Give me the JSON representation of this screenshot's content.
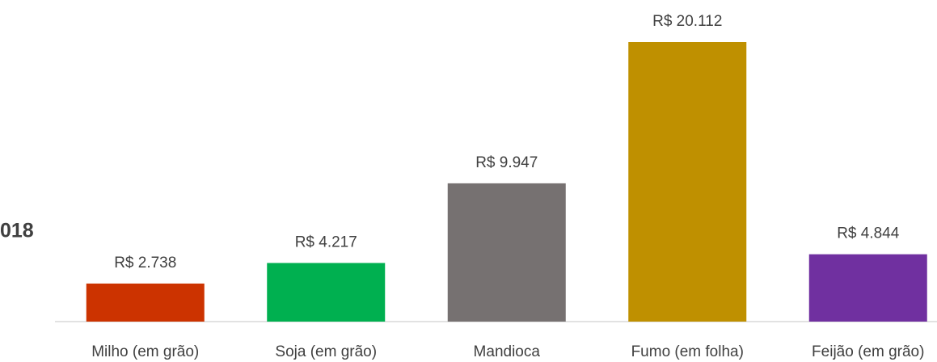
{
  "chart_data": {
    "type": "bar",
    "side_label": "018",
    "categories": [
      "Milho (em grão)",
      "Soja (em grão)",
      "Mandioca",
      "Fumo (em folha)",
      "Feijão (em grão)"
    ],
    "values": [
      2738,
      4217,
      9947,
      20112,
      4844
    ],
    "value_labels": [
      "R$ 2.738",
      "R$ 4.217",
      "R$ 9.947",
      "R$ 20.112",
      "R$ 4.844"
    ],
    "colors": [
      "#cc3300",
      "#00b050",
      "#767171",
      "#bf9000",
      "#7030a0"
    ]
  }
}
